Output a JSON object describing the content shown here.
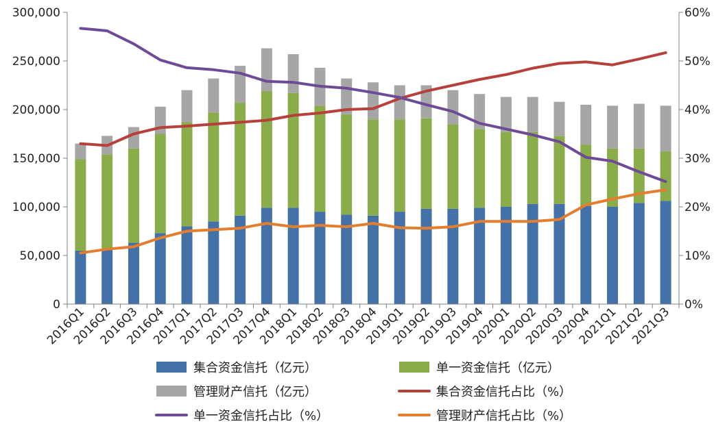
{
  "chart_data": {
    "type": "bar",
    "stacked": true,
    "categories": [
      "2016Q1",
      "2016Q2",
      "2016Q3",
      "2016Q4",
      "2017Q1",
      "2017Q2",
      "2017Q3",
      "2017Q4",
      "2018Q1",
      "2018Q2",
      "2018Q3",
      "2018Q4",
      "2019Q1",
      "2019Q2",
      "2019Q3",
      "2019Q4",
      "2020Q1",
      "2020Q2",
      "2020Q3",
      "2020Q4",
      "2021Q1",
      "2021Q2",
      "2021Q3"
    ],
    "y_left": {
      "ylim": [
        0,
        300000
      ],
      "ticks": [
        0,
        50000,
        100000,
        150000,
        200000,
        250000,
        300000
      ],
      "tick_labels": [
        "0",
        "50,000",
        "100,000",
        "150,000",
        "200,000",
        "250,000",
        "300,000"
      ]
    },
    "y_right": {
      "ylim": [
        0,
        60
      ],
      "ticks": [
        0,
        10,
        20,
        30,
        40,
        50,
        60
      ],
      "tick_labels": [
        "0%",
        "10%",
        "20%",
        "30%",
        "40%",
        "50%",
        "60%"
      ]
    },
    "series": [
      {
        "name": "集合资金信托（亿元）",
        "kind": "bar",
        "axis": "left",
        "color": "#4472a8",
        "values": [
          55000,
          57000,
          63000,
          73000,
          80000,
          85000,
          91000,
          99000,
          99000,
          95000,
          92000,
          91000,
          95000,
          98000,
          98000,
          99000,
          100000,
          103000,
          103000,
          101000,
          100000,
          104000,
          106000
        ]
      },
      {
        "name": "单一资金信托（亿元）",
        "kind": "bar",
        "axis": "left",
        "color": "#8aac4a",
        "values": [
          94000,
          97000,
          97000,
          102000,
          107000,
          112000,
          116000,
          120000,
          118000,
          109000,
          103000,
          99000,
          95000,
          93000,
          87000,
          81000,
          77000,
          74000,
          70000,
          63000,
          60000,
          56000,
          51000
        ]
      },
      {
        "name": "管理财产信托（亿元）",
        "kind": "bar",
        "axis": "left",
        "color": "#a6a6a6",
        "values": [
          16000,
          19000,
          22000,
          28000,
          33000,
          35000,
          38000,
          44000,
          40000,
          39000,
          37000,
          38000,
          35000,
          34000,
          35000,
          36000,
          36000,
          36000,
          35000,
          41000,
          44000,
          46000,
          47000
        ]
      },
      {
        "name": "集合资金信托占比（%）",
        "kind": "line",
        "axis": "right",
        "color": "#b7403b",
        "values": [
          33.0,
          32.6,
          35.0,
          36.3,
          36.6,
          37.0,
          37.4,
          37.8,
          38.8,
          39.3,
          40.0,
          40.2,
          42.3,
          43.8,
          45.0,
          46.2,
          47.2,
          48.5,
          49.5,
          49.8,
          49.2,
          50.4,
          51.7
        ]
      },
      {
        "name": "单一资金信托占比（%）",
        "kind": "line",
        "axis": "right",
        "color": "#6f4b97",
        "values": [
          56.7,
          56.2,
          53.5,
          50.2,
          48.6,
          48.2,
          47.5,
          45.8,
          45.6,
          44.8,
          44.4,
          43.5,
          42.5,
          41.0,
          39.6,
          37.2,
          36.0,
          34.8,
          33.4,
          30.2,
          29.4,
          27.2,
          25.2
        ]
      },
      {
        "name": "管理财产信托占比（%）",
        "kind": "line",
        "axis": "right",
        "color": "#e37e2f",
        "values": [
          10.5,
          11.3,
          11.8,
          13.6,
          15.0,
          15.3,
          15.6,
          16.6,
          15.9,
          16.2,
          15.9,
          16.6,
          15.7,
          15.6,
          15.9,
          17.0,
          17.0,
          17.0,
          17.4,
          20.4,
          21.6,
          22.7,
          23.5
        ]
      }
    ],
    "legend_position": "bottom",
    "grid": false,
    "title": "",
    "xlabel": "",
    "ylabel": ""
  }
}
